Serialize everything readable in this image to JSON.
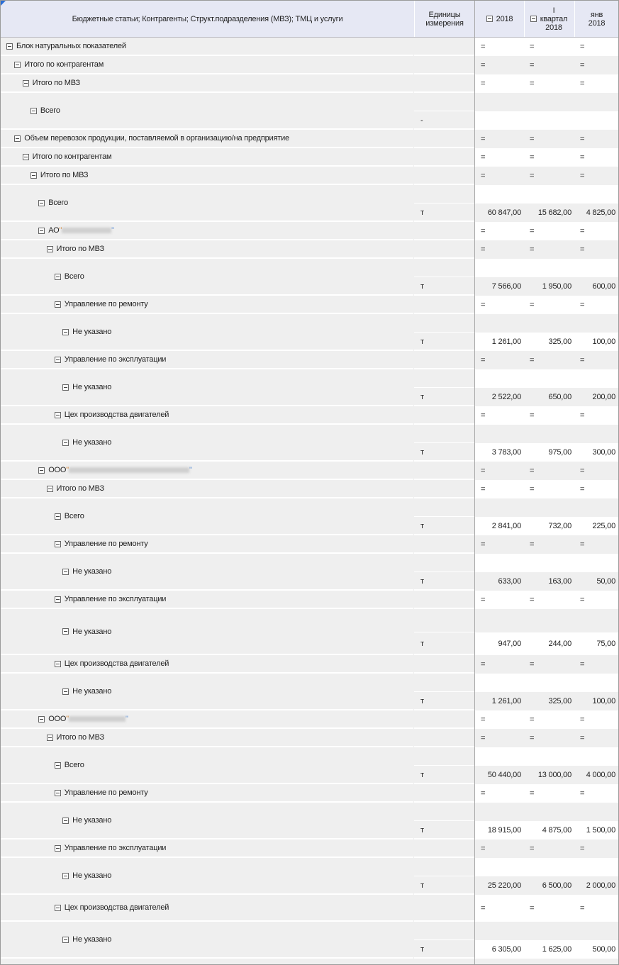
{
  "header": {
    "col_label": "Бюджетные статьи; Контрагенты; Структ.подразделения (МВЗ); ТМЦ и услуги",
    "col_units": "Единицы измерения",
    "col_year": "2018",
    "col_quarter": "I квартал 2018",
    "col_month": "янв 2018"
  },
  "colors": {
    "header_bg": "#e6e8f4",
    "row_bg": "#efefef",
    "accent": "#2a6ed6"
  },
  "icons": {
    "expander": "minus-box-icon"
  },
  "rows": [
    {
      "label": "Блок натуральных показателей",
      "level": 0,
      "values": [
        "=",
        "=",
        "="
      ]
    },
    {
      "label": "Итого по контрагентам",
      "level": 1,
      "values": [
        "=",
        "=",
        "="
      ]
    },
    {
      "label": "Итого по МВЗ",
      "level": 2,
      "values": [
        "=",
        "=",
        "="
      ]
    },
    {
      "label": "Всего",
      "level": 3,
      "double": true,
      "unit": "-",
      "values": [
        "",
        "",
        ""
      ]
    },
    {
      "label": "Объем перевозок продукции, поставляемой в организацию/на предприятие",
      "level": 1,
      "values": [
        "=",
        "=",
        "="
      ]
    },
    {
      "label": "Итого по контрагентам",
      "level": 2,
      "values": [
        "=",
        "=",
        "="
      ]
    },
    {
      "label": "Итого по МВЗ",
      "level": 3,
      "values": [
        "=",
        "=",
        "="
      ]
    },
    {
      "label": "Всего",
      "level": 4,
      "double": true,
      "unit": "т",
      "values": [
        "60 847,00",
        "15 682,00",
        "4 825,00"
      ]
    },
    {
      "label": "АО ",
      "level": 4,
      "redacted": true,
      "values": [
        "=",
        "=",
        "="
      ]
    },
    {
      "label": "Итого по МВЗ",
      "level": 5,
      "values": [
        "=",
        "=",
        "="
      ]
    },
    {
      "label": "Всего",
      "level": 6,
      "double": true,
      "unit": "т",
      "values": [
        "7 566,00",
        "1 950,00",
        "600,00"
      ]
    },
    {
      "label": "Управление по ремонту",
      "level": 6,
      "values": [
        "=",
        "=",
        "="
      ]
    },
    {
      "label": "Не указано",
      "level": 7,
      "double": true,
      "unit": "т",
      "values": [
        "1 261,00",
        "325,00",
        "100,00"
      ]
    },
    {
      "label": "Управление по эксплуатации",
      "level": 6,
      "values": [
        "=",
        "=",
        "="
      ]
    },
    {
      "label": "Не указано",
      "level": 7,
      "double": true,
      "unit": "т",
      "values": [
        "2 522,00",
        "650,00",
        "200,00"
      ]
    },
    {
      "label": "Цех производства двигателей",
      "level": 6,
      "values": [
        "=",
        "=",
        "="
      ]
    },
    {
      "label": "Не указано",
      "level": 7,
      "double": true,
      "unit": "т",
      "values": [
        "3 783,00",
        "975,00",
        "300,00"
      ]
    },
    {
      "label": "ООО ",
      "level": 4,
      "redacted": true,
      "values": [
        "=",
        "=",
        "="
      ]
    },
    {
      "label": "Итого по МВЗ",
      "level": 5,
      "values": [
        "=",
        "=",
        "="
      ]
    },
    {
      "label": "Всего",
      "level": 6,
      "double": true,
      "unit": "т",
      "values": [
        "2 841,00",
        "732,00",
        "225,00"
      ]
    },
    {
      "label": "Управление по ремонту",
      "level": 6,
      "values": [
        "=",
        "=",
        "="
      ]
    },
    {
      "label": "Не указано",
      "level": 7,
      "double": true,
      "unit": "т",
      "values": [
        "633,00",
        "163,00",
        "50,00"
      ]
    },
    {
      "label": "Управление по эксплуатации",
      "level": 6,
      "values": [
        "=",
        "=",
        "="
      ]
    },
    {
      "label": "Не указано",
      "level": 7,
      "double": true,
      "unit": "т",
      "values": [
        "947,00",
        "244,00",
        "75,00"
      ]
    },
    {
      "label": "Цех производства двигателей",
      "level": 6,
      "values": [
        "=",
        "=",
        "="
      ]
    },
    {
      "label": "Не указано",
      "level": 7,
      "double": true,
      "unit": "т",
      "values": [
        "1 261,00",
        "325,00",
        "100,00"
      ]
    },
    {
      "label": "ООО ",
      "level": 4,
      "redacted": true,
      "values": [
        "=",
        "=",
        "="
      ]
    },
    {
      "label": "Итого по МВЗ",
      "level": 5,
      "values": [
        "=",
        "=",
        "="
      ]
    },
    {
      "label": "Всего",
      "level": 6,
      "double": true,
      "unit": "т",
      "values": [
        "50 440,00",
        "13 000,00",
        "4 000,00"
      ]
    },
    {
      "label": "Управление по ремонту",
      "level": 6,
      "values": [
        "=",
        "=",
        "="
      ]
    },
    {
      "label": "Не указано",
      "level": 7,
      "double": true,
      "unit": "т",
      "values": [
        "18 915,00",
        "4 875,00",
        "1 500,00"
      ]
    },
    {
      "label": "Управление по эксплуатации",
      "level": 6,
      "values": [
        "=",
        "=",
        "="
      ]
    },
    {
      "label": "Не указано",
      "level": 7,
      "double": true,
      "unit": "т",
      "values": [
        "25 220,00",
        "6 500,00",
        "2 000,00"
      ]
    },
    {
      "label": "Цех производства двигателей",
      "level": 6,
      "values": [
        "=",
        "=",
        "="
      ]
    },
    {
      "label": "Не указано",
      "level": 7,
      "double": true,
      "unit": "т",
      "values": [
        "6 305,00",
        "1 625,00",
        "500,00"
      ]
    }
  ]
}
